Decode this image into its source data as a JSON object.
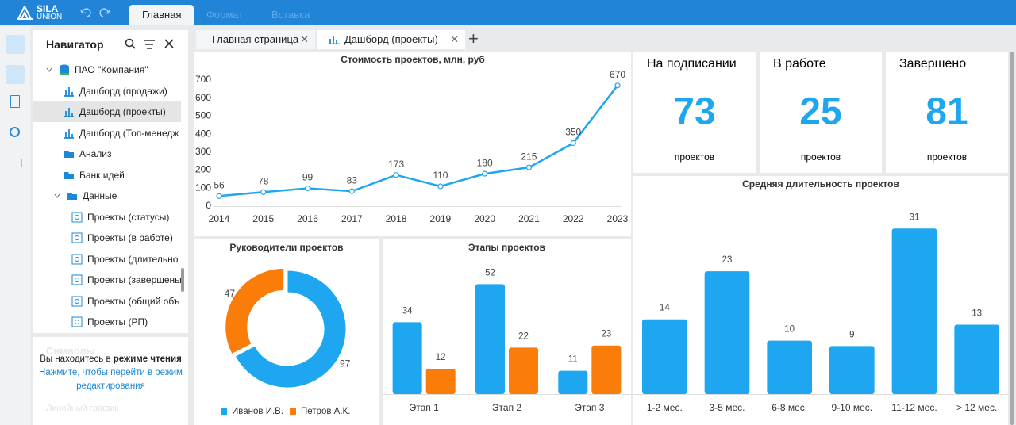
{
  "ribbon": {
    "logo_top": "SILA",
    "logo_bottom": "UNION",
    "tabs": [
      "Главная",
      "Формат",
      "Вставка"
    ]
  },
  "navigator": {
    "title": "Навигатор",
    "items": [
      "ПАО \"Компания\"",
      "Дашборд (продажи)",
      "Дашборд (проекты)",
      "Дашборд (Топ-менедж",
      "Анализ",
      "Банк идей",
      "Данные",
      "Проекты (статусы)",
      "Проекты (в работе)",
      "Проекты (длительно",
      "Проекты (завершены",
      "Проекты (общий объ",
      "Проекты (РП)"
    ]
  },
  "notice": {
    "faded_title": "Символы",
    "text": "Вы находитесь в",
    "text_bold": "режиме чтения",
    "link": "Нажмите, чтобы перейти в режим редактирования",
    "faded_item": "Линейный график"
  },
  "document_tabs": [
    "Главная страница",
    "Дашборд (проекты)"
  ],
  "kpis": [
    {
      "title": "На подписании",
      "value": 73,
      "unit": "проектов"
    },
    {
      "title": "В работе",
      "value": 25,
      "unit": "проектов"
    },
    {
      "title": "Завершено",
      "value": 81,
      "unit": "проектов"
    }
  ],
  "chart_data": [
    {
      "type": "line",
      "title": "Стоимость проектов, млн. руб",
      "categories": [
        "2014",
        "2015",
        "2016",
        "2017",
        "2018",
        "2019",
        "2020",
        "2021",
        "2022",
        "2023"
      ],
      "values": [
        56,
        78,
        99,
        83,
        173,
        110,
        180,
        215,
        350,
        670
      ],
      "color": "#1ea7f0",
      "ylim": [
        0,
        700
      ],
      "yticks": [
        0,
        100,
        200,
        300,
        400,
        500,
        600,
        700
      ],
      "grid": false
    },
    {
      "type": "donut",
      "title": "Руководители проектов",
      "labels": [
        "Иванов И.В.",
        "Петров А.К."
      ],
      "values": [
        97,
        47
      ],
      "colors": [
        "#1ea7f0",
        "#fa7d0a"
      ],
      "legend": "bottom"
    },
    {
      "type": "bar",
      "title": "Этапы проектов",
      "categories": [
        "Этап 1",
        "Этап 2",
        "Этап 3"
      ],
      "series": [
        {
          "color": "#1ea7f0",
          "values": [
            34,
            52,
            11
          ]
        },
        {
          "color": "#fa7d0a",
          "values": [
            12,
            22,
            23
          ]
        }
      ]
    },
    {
      "type": "bar",
      "title": "Средняя длительность проектов",
      "categories": [
        "1-2 мес.",
        "3-5 мес.",
        "6-8 мес.",
        "9-10 мес.",
        "11-12 мес.",
        "> 12 мес."
      ],
      "values": [
        14,
        23,
        10,
        9,
        31,
        13
      ],
      "color": "#1ea7f0"
    }
  ]
}
